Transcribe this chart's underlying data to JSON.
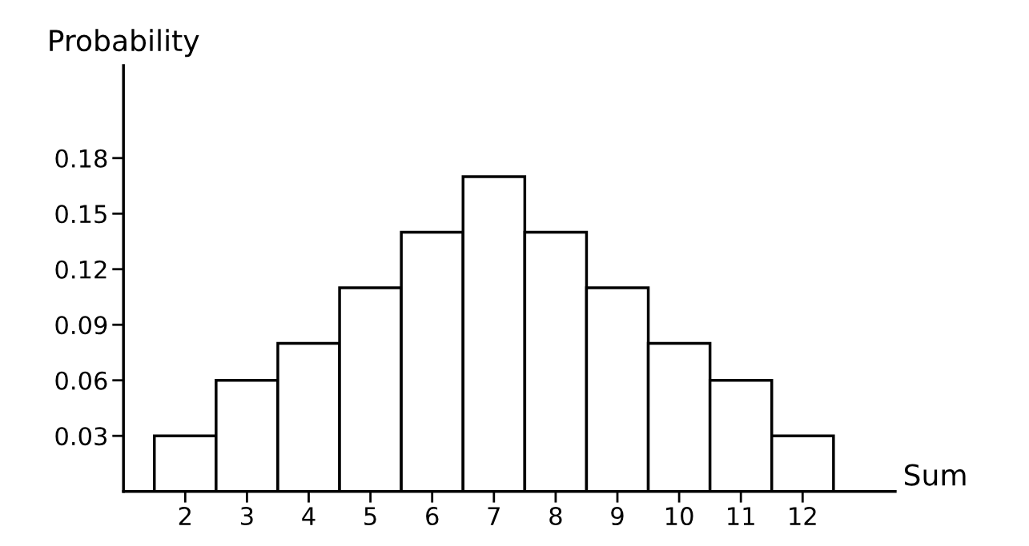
{
  "chart_data": {
    "type": "bar",
    "xlabel": "Sum",
    "ylabel": "Probability",
    "categories": [
      "2",
      "3",
      "4",
      "5",
      "6",
      "7",
      "8",
      "9",
      "10",
      "11",
      "12"
    ],
    "values": [
      0.03,
      0.06,
      0.08,
      0.11,
      0.14,
      0.17,
      0.14,
      0.11,
      0.08,
      0.06,
      0.03
    ],
    "color": "#ffffff",
    "ylim": [
      0,
      0.23
    ],
    "yticks": [
      0.03,
      0.06,
      0.09,
      0.12,
      0.15,
      0.18
    ],
    "grid": false
  }
}
